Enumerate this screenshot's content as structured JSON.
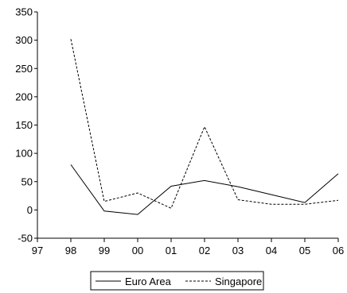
{
  "chart_data": {
    "type": "line",
    "title": "",
    "xlabel": "",
    "ylabel": "",
    "categories": [
      "97",
      "98",
      "99",
      "00",
      "01",
      "02",
      "03",
      "04",
      "05",
      "06"
    ],
    "ylim": [
      -50,
      350
    ],
    "yticks": [
      -50,
      0,
      50,
      100,
      150,
      200,
      250,
      300,
      350
    ],
    "grid": false,
    "legend_position": "bottom-center",
    "series": [
      {
        "name": "Euro Area",
        "line_style": "solid",
        "color": "#000000",
        "values": [
          null,
          80,
          -2,
          -8,
          42,
          52,
          41,
          27,
          13,
          64
        ]
      },
      {
        "name": "Singapore",
        "line_style": "dashed",
        "color": "#000000",
        "values": [
          null,
          302,
          15,
          30,
          3,
          147,
          18,
          10,
          10,
          17
        ]
      }
    ]
  }
}
